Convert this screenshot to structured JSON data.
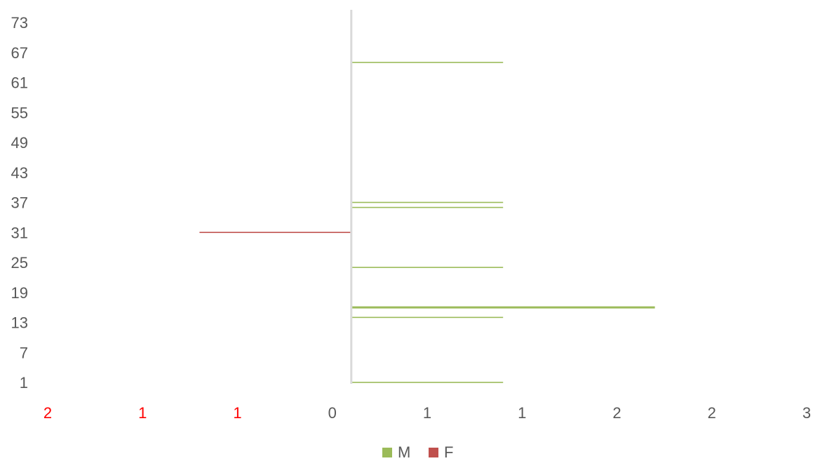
{
  "chart_data": {
    "type": "bar",
    "orientation": "horizontal",
    "layout": "population-pyramid",
    "y_tick_labels": [
      "1",
      "7",
      "13",
      "19",
      "25",
      "31",
      "37",
      "43",
      "49",
      "55",
      "61",
      "67",
      "73"
    ],
    "x_tick_labels": [
      {
        "label": "2",
        "color": "#ff0000"
      },
      {
        "label": "1",
        "color": "#ff0000"
      },
      {
        "label": "1",
        "color": "#ff0000"
      },
      {
        "label": "0",
        "color": "#595959"
      },
      {
        "label": "1",
        "color": "#595959"
      },
      {
        "label": "1",
        "color": "#595959"
      },
      {
        "label": "2",
        "color": "#595959"
      },
      {
        "label": "2",
        "color": "#595959"
      },
      {
        "label": "3",
        "color": "#595959"
      }
    ],
    "xlim": [
      -2,
      3
    ],
    "ylim": [
      1,
      79
    ],
    "series": [
      {
        "name": "M",
        "color": "#9bbb59",
        "points": [
          {
            "y": 1,
            "value": 1
          },
          {
            "y": 14,
            "value": 1
          },
          {
            "y": 16,
            "value": 2
          },
          {
            "y": 24,
            "value": 1
          },
          {
            "y": 36,
            "value": 1
          },
          {
            "y": 37,
            "value": 1
          },
          {
            "y": 65,
            "value": 1
          }
        ]
      },
      {
        "name": "F",
        "color": "#c0504d",
        "points": [
          {
            "y": 31,
            "value": -1
          }
        ]
      }
    ],
    "axis_color": "#d9d9d9",
    "grid": false,
    "legend_position": "bottom"
  }
}
